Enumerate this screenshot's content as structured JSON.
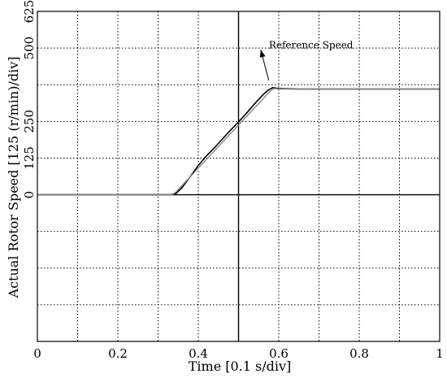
{
  "chart_data": {
    "type": "line",
    "xlabel": "Time [0.1 s/div]",
    "ylabel": "Actual Rotor Speed [125 (r/min)/div]",
    "xlim": [
      0,
      1
    ],
    "ylim": [
      -500,
      625
    ],
    "x_ticks": [
      0,
      0.2,
      0.4,
      0.6,
      0.8,
      1
    ],
    "x_tick_labels": [
      "0",
      "0.2",
      "0.4",
      "0.6",
      "0.8",
      "1"
    ],
    "x_minor_grid_step": 0.1,
    "y_ticks": [
      0,
      125,
      250,
      500,
      625
    ],
    "y_tick_labels": [
      "0",
      "125",
      "250",
      "500",
      "625"
    ],
    "y_grid_step": 125,
    "grid": true,
    "grid_style": "dotted",
    "center_lines": true,
    "series": [
      {
        "x": [
          0,
          0.33,
          0.345,
          0.36,
          0.38,
          0.4,
          0.42,
          0.44,
          0.46,
          0.48,
          0.5,
          0.52,
          0.54,
          0.56,
          0.575,
          0.585,
          0.6,
          0.65,
          0.7,
          0.8,
          0.9,
          1.0
        ],
        "y": [
          0,
          0,
          5,
          25,
          62,
          100,
          132,
          160,
          190,
          220,
          248,
          278,
          310,
          340,
          358,
          365,
          362,
          360,
          360,
          360,
          360,
          360
        ]
      },
      {
        "x": [
          0,
          0.335,
          0.345,
          0.58,
          0.59,
          0.6,
          0.7,
          0.8,
          0.9,
          1.0
        ],
        "y": [
          0,
          0,
          10,
          355,
          362,
          360,
          360,
          360,
          360,
          360
        ]
      }
    ],
    "annotations": [
      {
        "text": "Reference Speed",
        "x": 0.535,
        "y": 505,
        "arrow_to": [
          0.575,
          390
        ]
      }
    ]
  }
}
